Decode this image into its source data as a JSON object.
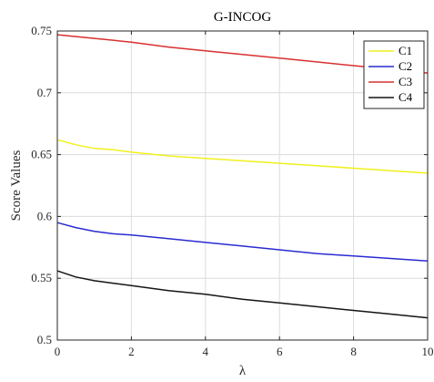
{
  "chart_data": {
    "type": "line",
    "title": "G-INCOG",
    "xlabel": "λ",
    "ylabel": "Score Values",
    "xlim": [
      0,
      10
    ],
    "ylim": [
      0.5,
      0.75
    ],
    "xticks": [
      0,
      2,
      4,
      6,
      8,
      10
    ],
    "yticks": [
      0.5,
      0.55,
      0.6,
      0.65,
      0.7,
      0.75
    ],
    "xtick_labels": [
      "0",
      "2",
      "4",
      "6",
      "8",
      "10"
    ],
    "ytick_labels": [
      "0.5",
      "0.55",
      "0.6",
      "0.65",
      "0.7",
      "0.75"
    ],
    "grid": true,
    "legend_position": "top-right",
    "series": [
      {
        "name": "C1",
        "color": "#f0f01e",
        "x": [
          0,
          0.5,
          1,
          1.5,
          2,
          3,
          4,
          5,
          6,
          7,
          8,
          9,
          10
        ],
        "y": [
          0.662,
          0.658,
          0.655,
          0.654,
          0.652,
          0.649,
          0.647,
          0.645,
          0.643,
          0.641,
          0.639,
          0.637,
          0.635
        ]
      },
      {
        "name": "C2",
        "color": "#2b2bd0",
        "x": [
          0,
          0.5,
          1,
          1.5,
          2,
          3,
          4,
          5,
          6,
          7,
          8,
          9,
          10
        ],
        "y": [
          0.595,
          0.591,
          0.588,
          0.586,
          0.585,
          0.582,
          0.579,
          0.576,
          0.573,
          0.57,
          0.568,
          0.566,
          0.564
        ]
      },
      {
        "name": "C3",
        "color": "#d93030",
        "x": [
          0,
          1,
          2,
          3,
          4,
          5,
          6,
          7,
          8,
          9,
          10
        ],
        "y": [
          0.747,
          0.744,
          0.741,
          0.737,
          0.734,
          0.731,
          0.728,
          0.725,
          0.722,
          0.719,
          0.716
        ]
      },
      {
        "name": "C4",
        "color": "#151515",
        "x": [
          0,
          0.5,
          1,
          1.5,
          2,
          3,
          4,
          5,
          6,
          7,
          8,
          9,
          10
        ],
        "y": [
          0.556,
          0.551,
          0.548,
          0.546,
          0.544,
          0.54,
          0.537,
          0.533,
          0.53,
          0.527,
          0.524,
          0.521,
          0.518
        ]
      }
    ]
  }
}
